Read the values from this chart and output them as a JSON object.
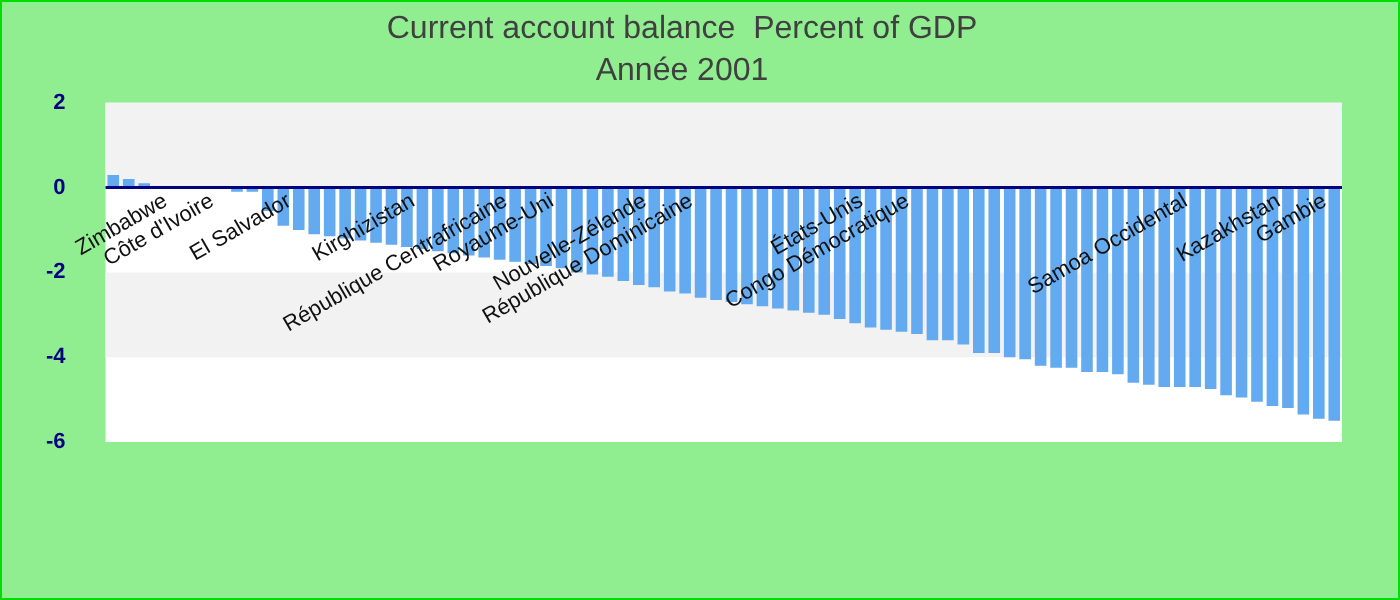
{
  "chart_data": {
    "type": "bar",
    "title": "Current account balance  Percent of GDP",
    "subtitle": "Année 2001",
    "categories": [
      null,
      null,
      null,
      "Zimbabwe",
      null,
      null,
      "Côte d'Ivoire",
      null,
      null,
      null,
      null,
      "El Salvador",
      null,
      null,
      null,
      null,
      null,
      null,
      null,
      "Kirghizistan",
      null,
      null,
      null,
      null,
      null,
      "République Centrafricaine",
      null,
      null,
      "Royaume-Uni",
      null,
      null,
      null,
      null,
      null,
      "Nouvelle-Zélande",
      null,
      null,
      "République Dominicaine",
      null,
      null,
      null,
      null,
      null,
      null,
      null,
      null,
      null,
      null,
      "États-Unis",
      null,
      null,
      "Congo Démocratique",
      null,
      null,
      null,
      null,
      null,
      null,
      null,
      null,
      null,
      null,
      null,
      null,
      null,
      null,
      null,
      null,
      null,
      "Samoa Occidental",
      null,
      null,
      null,
      null,
      null,
      "Kazakhstan",
      null,
      null,
      "Gambie",
      null
    ],
    "values": [
      0.3,
      0.2,
      0.1,
      0,
      0,
      0,
      0,
      0,
      -0.1,
      -0.1,
      -0.55,
      -0.9,
      -1.0,
      -1.1,
      -1.15,
      -1.2,
      -1.25,
      -1.3,
      -1.35,
      -1.4,
      -1.45,
      -1.5,
      -1.55,
      -1.6,
      -1.65,
      -1.7,
      -1.75,
      -1.8,
      -1.85,
      -1.9,
      -2.0,
      -2.05,
      -2.1,
      -2.2,
      -2.3,
      -2.35,
      -2.45,
      -2.5,
      -2.6,
      -2.65,
      -2.7,
      -2.75,
      -2.8,
      -2.85,
      -2.9,
      -2.95,
      -3.0,
      -3.1,
      -3.2,
      -3.3,
      -3.35,
      -3.4,
      -3.45,
      -3.6,
      -3.6,
      -3.7,
      -3.9,
      -3.9,
      -4.0,
      -4.05,
      -4.2,
      -4.25,
      -4.25,
      -4.35,
      -4.35,
      -4.4,
      -4.6,
      -4.65,
      -4.7,
      -4.7,
      -4.7,
      -4.75,
      -4.9,
      -4.95,
      -5.05,
      -5.15,
      -5.2,
      -5.35,
      -5.45,
      -5.5
    ],
    "color": "#64aaf0",
    "ylim": [
      -6,
      2
    ],
    "yticks": [
      -6,
      -4,
      -2,
      0,
      2
    ]
  }
}
